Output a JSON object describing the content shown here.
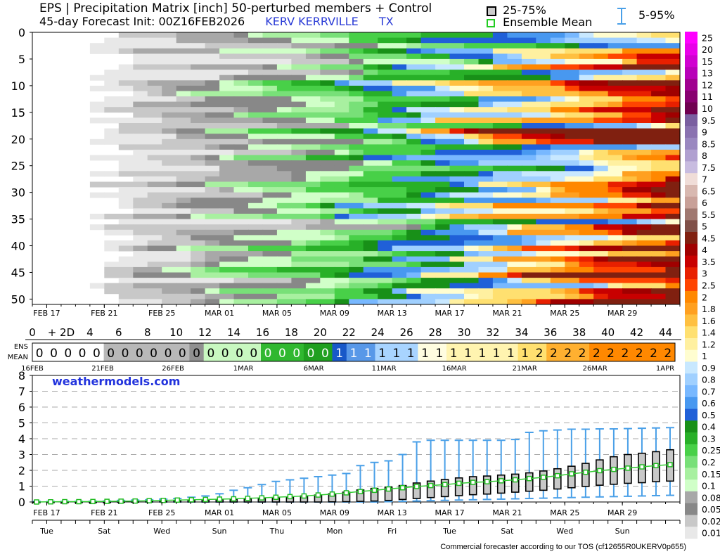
{
  "header": {
    "title": "EPS | Precipitation Matrix [inch]  50-perturbed members + Control",
    "init": "45-day Forecast Init: 00Z16FEB2026",
    "station": "KERV KERRVILLE",
    "state": "TX"
  },
  "legend": {
    "box_label": "25-75%",
    "mean_label": "Ensemble Mean",
    "whisker_label": "5-95%"
  },
  "footer": {
    "brand": "weathermodels.com",
    "tos": "Commercial forecaster according to our TOS (cf12655R0UKERV0p655)"
  },
  "chart_data": [
    {
      "type": "heatmap",
      "name": "member-matrix",
      "y_ticks": [
        "0",
        "5",
        "10",
        "15",
        "20",
        "25",
        "30",
        "35",
        "40",
        "45",
        "50"
      ],
      "x_ticks": [
        "FEB 17",
        "FEB 21",
        "FEB 25",
        "MAR 01",
        "MAR 05",
        "MAR 09",
        "MAR 13",
        "MAR 17",
        "MAR 21",
        "MAR 25",
        "MAR 29"
      ],
      "day_ticks": [
        "0",
        "+ 2D",
        "4",
        "6",
        "8",
        "10",
        "12",
        "14",
        "16",
        "18",
        "20",
        "22",
        "24",
        "26",
        "28",
        "30",
        "32",
        "34",
        "36",
        "38",
        "40",
        "42",
        "44"
      ],
      "members": 51,
      "days": 45
    },
    {
      "type": "table",
      "name": "ensemble-mean-strip",
      "row_label_top": "ENS",
      "row_label_bottom": "MEAN",
      "values": [
        "0",
        "0",
        "0",
        "0",
        "0",
        "0",
        "0",
        "0",
        "0",
        "0",
        "0",
        "0",
        "0",
        "0",
        "0",
        "0",
        "0",
        "0",
        "0",
        "0",
        "0",
        "1",
        "1",
        "1",
        "1",
        "1",
        "1",
        "1",
        "1",
        "1",
        "1",
        "1",
        "1",
        "1",
        "1",
        "2",
        "2",
        "2",
        "2",
        "2",
        "2",
        "2",
        "2",
        "2",
        "2"
      ],
      "date_ticks": [
        "16FEB",
        "21FEB",
        "26FEB",
        "1MAR",
        "6MAR",
        "11MAR",
        "16MAR",
        "21MAR",
        "26MAR",
        "1APR"
      ]
    },
    {
      "type": "line",
      "name": "accumulation-box",
      "ylim": [
        0,
        8
      ],
      "y_ticks": [
        "0",
        "1",
        "2",
        "3",
        "4",
        "5",
        "6",
        "7",
        "8"
      ],
      "x_ticks": [
        "FEB 17",
        "FEB 21",
        "FEB 25",
        "MAR 01",
        "MAR 05",
        "MAR 09",
        "MAR 13",
        "MAR 17",
        "MAR 21",
        "MAR 25",
        "MAR 29"
      ],
      "weekday_ticks": [
        "Tue",
        "Sat",
        "Wed",
        "Sun",
        "Thu",
        "Mon",
        "Fri",
        "Tue",
        "Sat",
        "Wed",
        "Sun"
      ],
      "mean": [
        0.0,
        0.01,
        0.02,
        0.02,
        0.03,
        0.04,
        0.05,
        0.06,
        0.08,
        0.1,
        0.12,
        0.14,
        0.16,
        0.18,
        0.2,
        0.23,
        0.26,
        0.3,
        0.34,
        0.38,
        0.44,
        0.5,
        0.58,
        0.66,
        0.74,
        0.82,
        0.9,
        0.98,
        1.04,
        1.1,
        1.18,
        1.24,
        1.28,
        1.34,
        1.4,
        1.48,
        1.56,
        1.66,
        1.78,
        1.88,
        1.98,
        2.06,
        2.14,
        2.22,
        2.3,
        2.36
      ],
      "q25": [
        0,
        0,
        0,
        0,
        0,
        0,
        0,
        0,
        0,
        0,
        0,
        0,
        0,
        0,
        0,
        0,
        0,
        0,
        0,
        0,
        0,
        0.01,
        0.02,
        0.04,
        0.06,
        0.1,
        0.16,
        0.22,
        0.28,
        0.34,
        0.4,
        0.46,
        0.5,
        0.56,
        0.62,
        0.68,
        0.74,
        0.82,
        0.9,
        0.98,
        1.06,
        1.12,
        1.18,
        1.22,
        1.28,
        1.32
      ],
      "q75": [
        0,
        0,
        0,
        0,
        0,
        0,
        0.02,
        0.03,
        0.05,
        0.06,
        0.08,
        0.1,
        0.12,
        0.14,
        0.17,
        0.2,
        0.24,
        0.28,
        0.32,
        0.38,
        0.44,
        0.52,
        0.62,
        0.76,
        0.86,
        0.94,
        1.04,
        1.2,
        1.32,
        1.42,
        1.52,
        1.6,
        1.64,
        1.7,
        1.76,
        1.84,
        1.96,
        2.1,
        2.26,
        2.44,
        2.66,
        2.86,
        3.0,
        3.08,
        3.18,
        3.3
      ],
      "p95": [
        0.03,
        0.03,
        0.04,
        0.04,
        0.05,
        0.06,
        0.1,
        0.12,
        0.14,
        0.18,
        0.22,
        0.3,
        0.38,
        0.52,
        0.74,
        0.9,
        1.1,
        1.3,
        1.4,
        1.5,
        1.6,
        1.7,
        1.8,
        2.3,
        2.5,
        2.6,
        3.0,
        3.8,
        3.9,
        3.9,
        3.9,
        3.9,
        3.9,
        3.9,
        3.95,
        4.4,
        4.5,
        4.55,
        4.6,
        4.6,
        4.62,
        4.62,
        4.64,
        4.66,
        4.68,
        4.7
      ],
      "p05": [
        0,
        0,
        0,
        0,
        0,
        0,
        0,
        0,
        0,
        0,
        0,
        0,
        0,
        0,
        0,
        0,
        0,
        0,
        0,
        0,
        0,
        0,
        0,
        0,
        0,
        0.02,
        0.04,
        0.06,
        0.08,
        0.1,
        0.12,
        0.14,
        0.16,
        0.18,
        0.2,
        0.22,
        0.24,
        0.26,
        0.28,
        0.3,
        0.32,
        0.34,
        0.36,
        0.38,
        0.4,
        0.42
      ]
    }
  ],
  "colorbar": {
    "labels": [
      "25",
      "20",
      "15",
      "13",
      "12",
      "11",
      "10",
      "9.5",
      "9",
      "8.5",
      "8",
      "7.5",
      "7",
      "6.5",
      "6",
      "5.5",
      "5",
      "4.5",
      "4",
      "3.5",
      "3",
      "2.5",
      "2",
      "1.8",
      "1.6",
      "1.4",
      "1.2",
      "1",
      "0.9",
      "0.8",
      "0.7",
      "0.6",
      "0.5",
      "0.4",
      "0.3",
      "0.25",
      "0.2",
      "0.15",
      "0.1",
      "0.08",
      "0.05",
      "0.02",
      "0.01"
    ],
    "colors": [
      "#ff00ff",
      "#e800e8",
      "#d000d0",
      "#b800b8",
      "#a00090",
      "#880070",
      "#700050",
      "#7a5fa0",
      "#8a72b0",
      "#9a88c0",
      "#b0a0d0",
      "#c8bce0",
      "#f0ddd8",
      "#d8b8b0",
      "#c8a098",
      "#a07870",
      "#805048",
      "#802010",
      "#a00000",
      "#c80000",
      "#e82000",
      "#ff4400",
      "#ff8800",
      "#ffa020",
      "#ffc040",
      "#ffe070",
      "#fff0a0",
      "#fffdd0",
      "#c8e8ff",
      "#a0d0ff",
      "#78b8ff",
      "#4898f0",
      "#2060d8",
      "#189018",
      "#28b028",
      "#48d048",
      "#78e078",
      "#a8f0a0",
      "#d0ffc8",
      "#a8a8a8",
      "#888888",
      "#c8c8c8",
      "#e8e8e8"
    ]
  }
}
